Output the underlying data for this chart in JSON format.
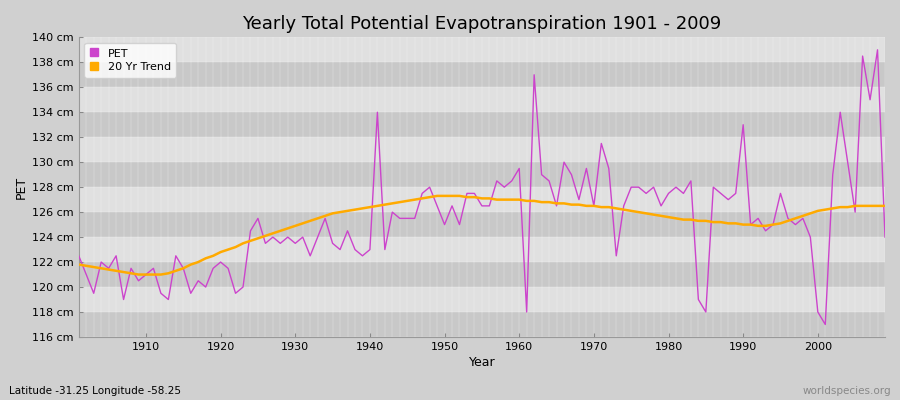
{
  "title": "Yearly Total Potential Evapotranspiration 1901 - 2009",
  "xlabel": "Year",
  "ylabel": "PET",
  "subtitle": "Latitude -31.25 Longitude -58.25",
  "watermark": "worldspecies.org",
  "pet_color": "#cc44cc",
  "trend_color": "#ffaa00",
  "fig_bg_color": "#d0d0d0",
  "plot_bg_color": "#e0e0e0",
  "band_color": "#c8c8c8",
  "ylim": [
    116,
    140
  ],
  "xlim": [
    1901,
    2009
  ],
  "years": [
    1901,
    1902,
    1903,
    1904,
    1905,
    1906,
    1907,
    1908,
    1909,
    1910,
    1911,
    1912,
    1913,
    1914,
    1915,
    1916,
    1917,
    1918,
    1919,
    1920,
    1921,
    1922,
    1923,
    1924,
    1925,
    1926,
    1927,
    1928,
    1929,
    1930,
    1931,
    1932,
    1933,
    1934,
    1935,
    1936,
    1937,
    1938,
    1939,
    1940,
    1941,
    1942,
    1943,
    1944,
    1945,
    1946,
    1947,
    1948,
    1949,
    1950,
    1951,
    1952,
    1953,
    1954,
    1955,
    1956,
    1957,
    1958,
    1959,
    1960,
    1961,
    1962,
    1963,
    1964,
    1965,
    1966,
    1967,
    1968,
    1969,
    1970,
    1971,
    1972,
    1973,
    1974,
    1975,
    1976,
    1977,
    1978,
    1979,
    1980,
    1981,
    1982,
    1983,
    1984,
    1985,
    1986,
    1987,
    1988,
    1989,
    1990,
    1991,
    1992,
    1993,
    1994,
    1995,
    1996,
    1997,
    1998,
    1999,
    2000,
    2001,
    2002,
    2003,
    2004,
    2005,
    2006,
    2007,
    2008,
    2009
  ],
  "pet_values": [
    122.5,
    121.0,
    119.5,
    122.0,
    121.5,
    122.5,
    119.0,
    121.5,
    120.5,
    121.0,
    121.5,
    119.5,
    119.0,
    122.5,
    121.5,
    119.5,
    120.5,
    120.0,
    121.5,
    122.0,
    121.5,
    119.5,
    120.0,
    124.5,
    125.5,
    123.5,
    124.0,
    123.5,
    124.0,
    123.5,
    124.0,
    122.5,
    124.0,
    125.5,
    123.5,
    123.0,
    124.5,
    123.0,
    122.5,
    123.0,
    134.0,
    123.0,
    126.0,
    125.5,
    125.5,
    125.5,
    127.5,
    128.0,
    126.5,
    125.0,
    126.5,
    125.0,
    127.5,
    127.5,
    126.5,
    126.5,
    128.5,
    128.0,
    128.5,
    129.5,
    118.0,
    137.0,
    129.0,
    128.5,
    126.5,
    130.0,
    129.0,
    127.0,
    129.5,
    126.5,
    131.5,
    129.5,
    122.5,
    126.5,
    128.0,
    128.0,
    127.5,
    128.0,
    126.5,
    127.5,
    128.0,
    127.5,
    128.5,
    119.0,
    118.0,
    128.0,
    127.5,
    127.0,
    127.5,
    133.0,
    125.0,
    125.5,
    124.5,
    125.0,
    127.5,
    125.5,
    125.0,
    125.5,
    124.0,
    118.0,
    117.0,
    129.0,
    134.0,
    130.0,
    126.0,
    138.5,
    135.0,
    139.0,
    124.0
  ],
  "trend_values": [
    121.8,
    121.7,
    121.6,
    121.5,
    121.4,
    121.3,
    121.2,
    121.1,
    121.0,
    121.0,
    121.0,
    121.0,
    121.1,
    121.3,
    121.5,
    121.8,
    122.0,
    122.3,
    122.5,
    122.8,
    123.0,
    123.2,
    123.5,
    123.7,
    123.9,
    124.1,
    124.3,
    124.5,
    124.7,
    124.9,
    125.1,
    125.3,
    125.5,
    125.7,
    125.9,
    126.0,
    126.1,
    126.2,
    126.3,
    126.4,
    126.5,
    126.6,
    126.7,
    126.8,
    126.9,
    127.0,
    127.1,
    127.2,
    127.3,
    127.3,
    127.3,
    127.3,
    127.2,
    127.2,
    127.1,
    127.1,
    127.0,
    127.0,
    127.0,
    127.0,
    126.9,
    126.9,
    126.8,
    126.8,
    126.7,
    126.7,
    126.6,
    126.6,
    126.5,
    126.5,
    126.4,
    126.4,
    126.3,
    126.2,
    126.1,
    126.0,
    125.9,
    125.8,
    125.7,
    125.6,
    125.5,
    125.4,
    125.4,
    125.3,
    125.3,
    125.2,
    125.2,
    125.1,
    125.1,
    125.0,
    125.0,
    124.9,
    124.9,
    125.0,
    125.1,
    125.3,
    125.5,
    125.7,
    125.9,
    126.1,
    126.2,
    126.3,
    126.4,
    126.4,
    126.5,
    126.5,
    126.5,
    126.5,
    126.5
  ]
}
